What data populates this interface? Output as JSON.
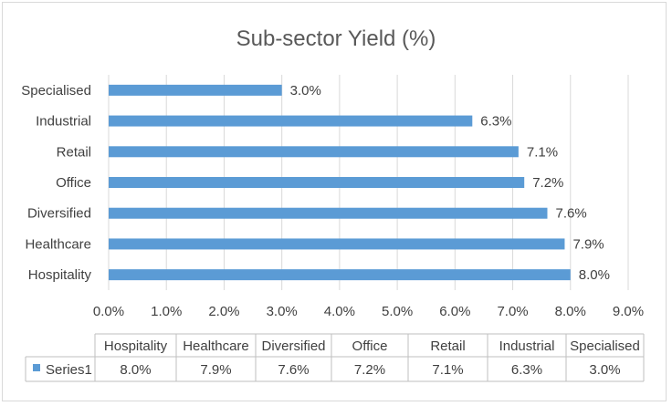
{
  "chart_data": {
    "type": "bar",
    "orientation": "horizontal",
    "title": "Sub-sector Yield (%)",
    "categories": [
      "Hospitality",
      "Healthcare",
      "Diversified",
      "Office",
      "Retail",
      "Industrial",
      "Specialised"
    ],
    "series": [
      {
        "name": "Series1",
        "values": [
          8.0,
          7.9,
          7.6,
          7.2,
          7.1,
          6.3,
          3.0
        ],
        "color": "#5b9bd5"
      }
    ],
    "data_labels": [
      "8.0%",
      "7.9%",
      "7.6%",
      "7.2%",
      "7.1%",
      "6.3%",
      "3.0%"
    ],
    "x_ticks": [
      "0.0%",
      "1.0%",
      "2.0%",
      "3.0%",
      "4.0%",
      "5.0%",
      "6.0%",
      "7.0%",
      "8.0%",
      "9.0%"
    ],
    "xlim": [
      0,
      9
    ],
    "grid": true,
    "legend": "data-table-below",
    "data_table": {
      "headers": [
        "Hospitality",
        "Healthcare",
        "Diversified",
        "Office",
        "Retail",
        "Industrial",
        "Specialised"
      ],
      "row_label": "Series1",
      "values": [
        "8.0%",
        "7.9%",
        "7.6%",
        "7.2%",
        "7.1%",
        "6.3%",
        "3.0%"
      ]
    }
  }
}
